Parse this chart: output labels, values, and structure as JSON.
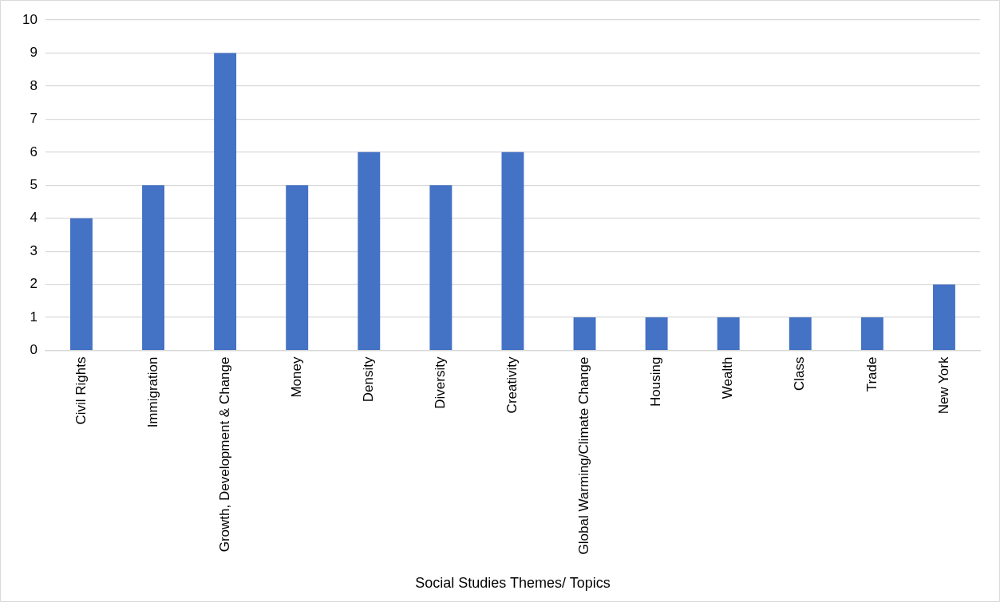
{
  "chart_data": {
    "type": "bar",
    "xlabel": "Social Studies Themes/ Topics",
    "categories": [
      "Civil Rights",
      "Immigration",
      "Growth, Development & Change",
      "Money",
      "Density",
      "Diversity",
      "Creativity",
      "Global Warming/Climate Change",
      "Housing",
      "Wealth",
      "Class",
      "Trade",
      "New York"
    ],
    "values": [
      4,
      5,
      9,
      5,
      6,
      5,
      6,
      1,
      1,
      1,
      1,
      1,
      2
    ],
    "color": "#4472c4",
    "ylim": [
      0,
      10
    ],
    "yticks": [
      0,
      1,
      2,
      3,
      4,
      5,
      6,
      7,
      8,
      9,
      10
    ],
    "grid": "y"
  }
}
